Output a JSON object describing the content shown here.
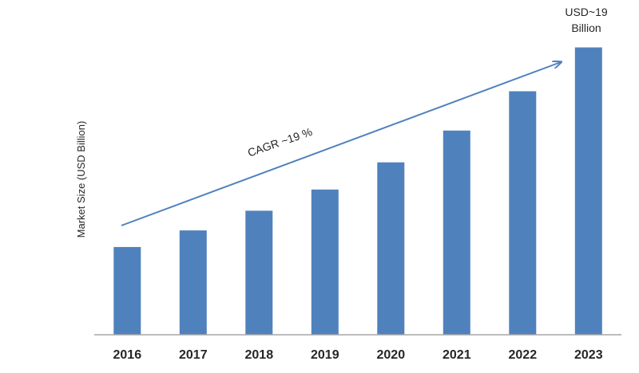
{
  "chart_data": {
    "type": "bar",
    "categories": [
      "2016",
      "2017",
      "2018",
      "2019",
      "2020",
      "2021",
      "2022",
      "2023"
    ],
    "values": [
      5.8,
      6.9,
      8.2,
      9.6,
      11.4,
      13.5,
      16.1,
      19.0
    ],
    "title": "",
    "xlabel": "",
    "ylabel": "Market Size (USD Billion)",
    "ylim": [
      0,
      19.5
    ],
    "grid": false,
    "legend": "none",
    "colors": {
      "bar": "#4f81bd",
      "arrow": "#4f81bd",
      "axis": "#a6a6a6",
      "text": "#262626"
    },
    "annotations": {
      "cagr": "CAGR ~19 %",
      "last_value_line1": "USD~19",
      "last_value_line2": "Billion"
    }
  }
}
